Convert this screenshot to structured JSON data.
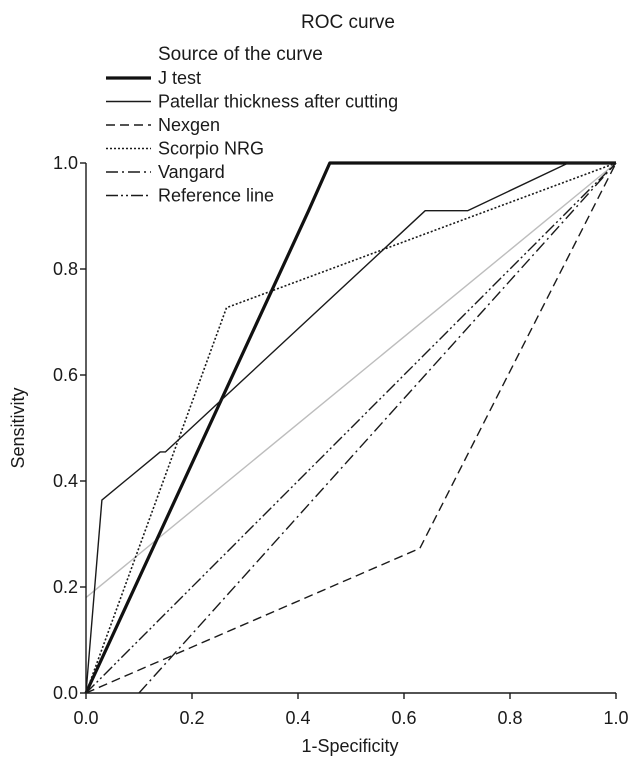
{
  "chart_data": {
    "type": "line",
    "title": "ROC curve",
    "legend_title": "Source of the curve",
    "legend_position": "top-left",
    "xlabel": "1-Specificity",
    "ylabel": "Sensitivity",
    "xlim": [
      0.0,
      1.0
    ],
    "ylim": [
      0.0,
      1.0
    ],
    "x_ticks": [
      "0.0",
      "0.2",
      "0.4",
      "0.6",
      "0.8",
      "1.0"
    ],
    "y_ticks": [
      "0.0",
      "0.2",
      "0.4",
      "0.6",
      "0.8",
      "1.0"
    ],
    "grid": false,
    "series": [
      {
        "name": "J test",
        "style": "thick-solid",
        "color": "#111111",
        "points": [
          [
            0.0,
            0.0
          ],
          [
            0.42,
            0.91
          ],
          [
            0.46,
            1.0
          ],
          [
            1.0,
            1.0
          ]
        ]
      },
      {
        "name": "Patellar thickness after cutting",
        "style": "solid",
        "color": "#1a1a1a",
        "points": [
          [
            0.0,
            0.0
          ],
          [
            0.03,
            0.364
          ],
          [
            0.14,
            0.455
          ],
          [
            0.15,
            0.455
          ],
          [
            0.64,
            0.91
          ],
          [
            0.72,
            0.91
          ],
          [
            0.91,
            1.0
          ],
          [
            1.0,
            1.0
          ]
        ]
      },
      {
        "name": "Nexgen",
        "style": "dashed",
        "color": "#1a1a1a",
        "points": [
          [
            0.0,
            0.0
          ],
          [
            0.63,
            0.273
          ],
          [
            1.0,
            1.0
          ]
        ]
      },
      {
        "name": "Scorpio NRG",
        "style": "dotted",
        "color": "#1a1a1a",
        "points": [
          [
            0.0,
            0.0
          ],
          [
            0.265,
            0.727
          ],
          [
            1.0,
            1.0
          ]
        ]
      },
      {
        "name": "Vangard",
        "style": "dash-dot",
        "color": "#1a1a1a",
        "points": [
          [
            0.1,
            0.0
          ],
          [
            1.0,
            1.0
          ]
        ]
      },
      {
        "name": "Reference line",
        "style": "dash-dot-dot",
        "color": "#1a1a1a",
        "points": [
          [
            0.0,
            0.0
          ],
          [
            1.0,
            1.0
          ]
        ]
      },
      {
        "style": "solid-gray",
        "color": "#bdbdbd",
        "legend": false,
        "points": [
          [
            0.0,
            0.18
          ],
          [
            1.0,
            1.0
          ]
        ]
      }
    ]
  }
}
